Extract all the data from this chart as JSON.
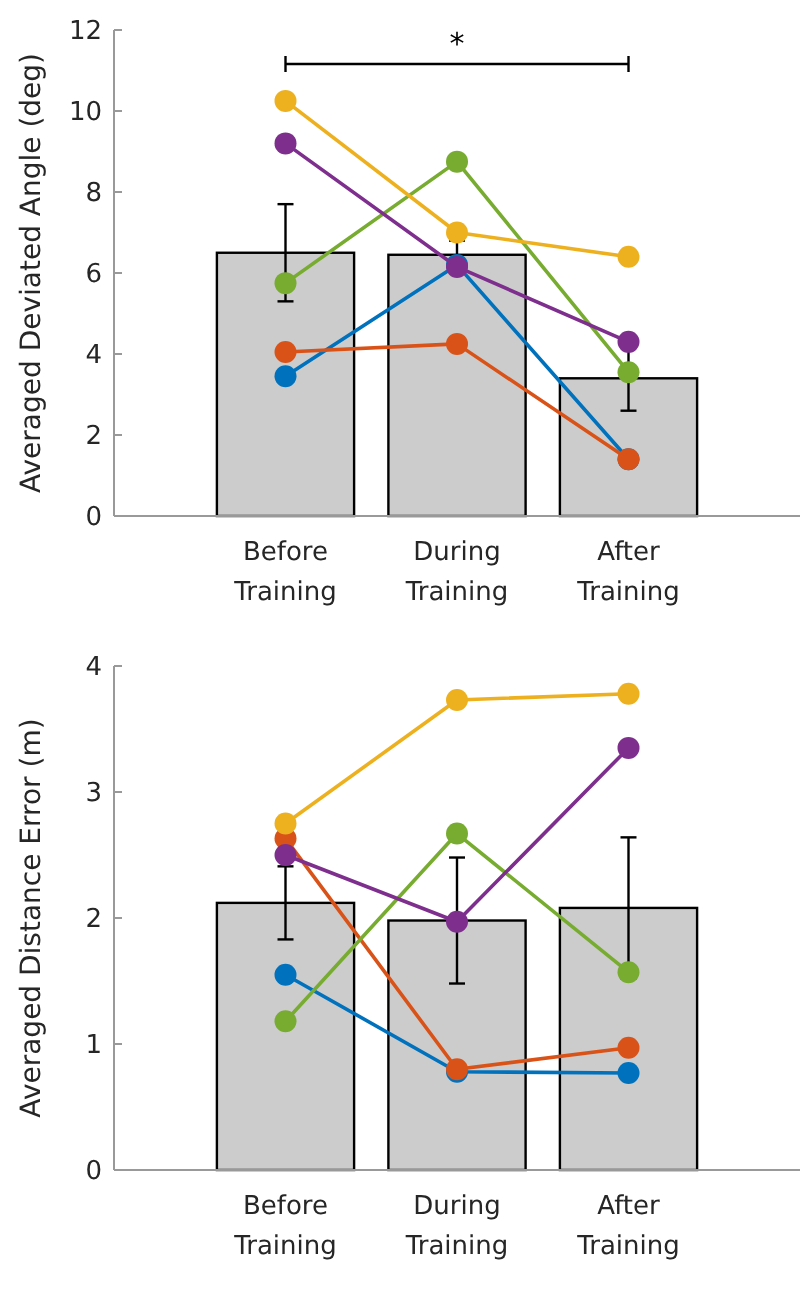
{
  "chart_data": [
    {
      "type": "bar",
      "ylabel": "Averaged Deviated Angle (deg)",
      "categories": [
        "Before Training",
        "During Training",
        "After Training"
      ],
      "ylim": [
        0,
        12
      ],
      "yticks": [
        0,
        2,
        4,
        6,
        8,
        10,
        12
      ],
      "grid": false,
      "marker": "circle",
      "annotations": [
        "*"
      ],
      "series": [
        {
          "color": "#cccccc",
          "values": [
            6.5,
            6.45,
            3.4
          ],
          "errors": [
            1.2,
            0.35,
            0.8
          ]
        },
        {
          "type": "line",
          "color": "#0072bd",
          "values": [
            3.45,
            6.2,
            1.4
          ]
        },
        {
          "type": "line",
          "color": "#d95319",
          "values": [
            4.05,
            4.25,
            1.4
          ]
        },
        {
          "type": "line",
          "color": "#77ac30",
          "values": [
            5.75,
            8.75,
            3.55
          ]
        },
        {
          "type": "line",
          "color": "#7e2f8e",
          "values": [
            9.2,
            6.15,
            4.3
          ]
        },
        {
          "type": "line",
          "color": "#edb120",
          "values": [
            10.25,
            7.0,
            6.4
          ]
        }
      ]
    },
    {
      "type": "bar",
      "ylabel": "Averaged Distance Error (m)",
      "categories": [
        "Before Training",
        "During Training",
        "After Training"
      ],
      "ylim": [
        0,
        4
      ],
      "yticks": [
        0,
        1,
        2,
        3,
        4
      ],
      "grid": false,
      "marker": "circle",
      "series": [
        {
          "color": "#cccccc",
          "values": [
            2.12,
            1.98,
            2.08
          ],
          "errors": [
            0.29,
            0.5,
            0.56
          ]
        },
        {
          "type": "line",
          "color": "#0072bd",
          "values": [
            1.55,
            0.78,
            0.77
          ]
        },
        {
          "type": "line",
          "color": "#d95319",
          "values": [
            2.63,
            0.8,
            0.97
          ]
        },
        {
          "type": "line",
          "color": "#77ac30",
          "values": [
            1.18,
            2.67,
            1.57
          ]
        },
        {
          "type": "line",
          "color": "#7e2f8e",
          "values": [
            2.5,
            1.97,
            3.35
          ]
        },
        {
          "type": "line",
          "color": "#edb120",
          "values": [
            2.75,
            3.73,
            3.78
          ]
        }
      ]
    }
  ]
}
